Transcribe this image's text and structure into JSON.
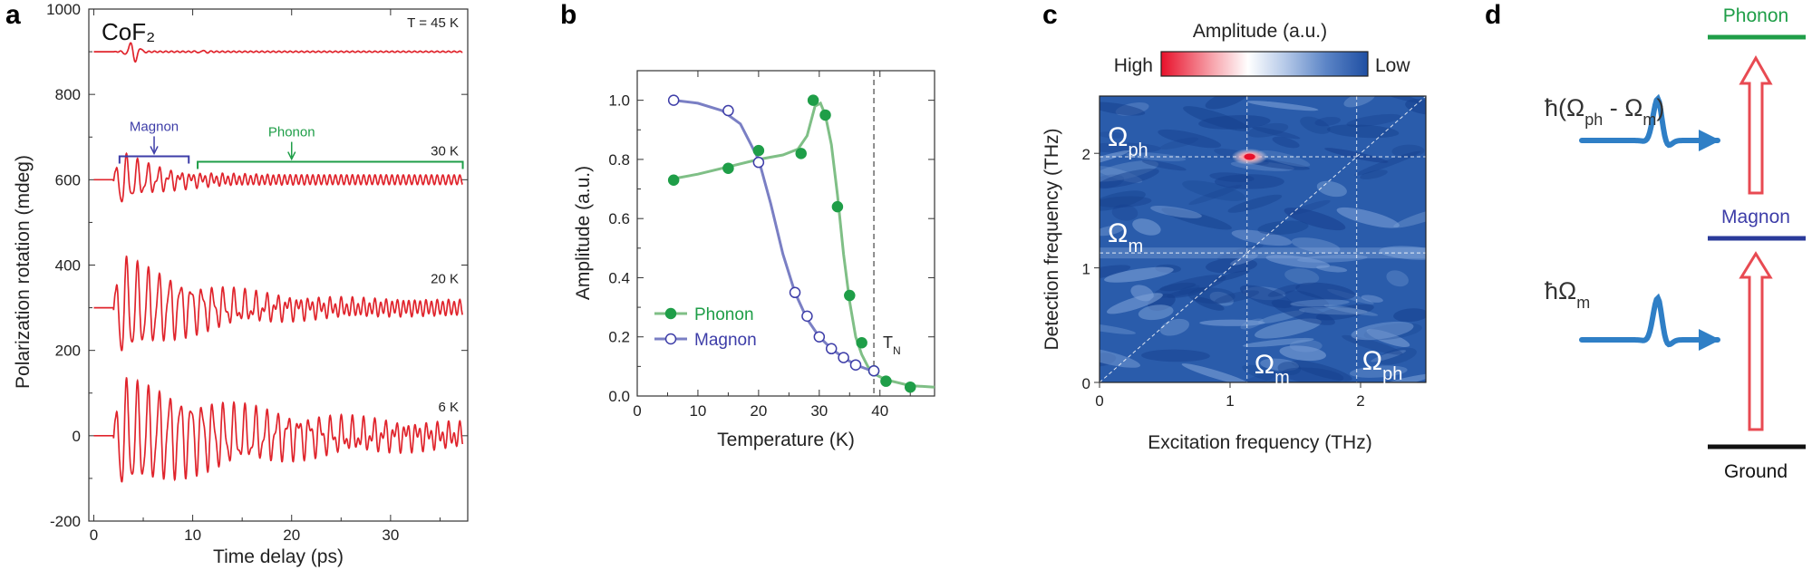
{
  "colors": {
    "red": "#e0242c",
    "green": "#1f9e48",
    "green_line": "#7fbf86",
    "blue": "#3d3da8",
    "blue_line": "#7a7fc4",
    "arrow_blue": "#2f7fc6",
    "map_blue": "#2a5cab",
    "black": "#111111"
  },
  "panel_labels": [
    "a",
    "b",
    "c",
    "d"
  ],
  "chart_data": [
    {
      "type": "line",
      "panel": "a",
      "material": "CoF₂",
      "xlabel": "Time delay (ps)",
      "ylabel": "Polarization rotation (mdeg)",
      "xlim": [
        -0.5,
        37.8
      ],
      "ylim": [
        -200,
        1000
      ],
      "xticks": [
        0,
        10,
        20,
        30
      ],
      "yticks": [
        -200,
        0,
        200,
        400,
        600,
        800,
        1000
      ],
      "series": [
        {
          "name": "T = 45 K",
          "offset": 900,
          "phonon_amp": 1.5,
          "magnon_amp": 0,
          "glitch": 25
        },
        {
          "name": "30 K",
          "offset": 600,
          "phonon_amp": 12,
          "magnon_amp": 70,
          "magnon_decay": 4
        },
        {
          "name": "20 K",
          "offset": 300,
          "phonon_amp": 18,
          "magnon_amp": 120,
          "magnon_decay": 9
        },
        {
          "name": "6 K",
          "offset": 0,
          "phonon_amp": 22,
          "magnon_amp": 125,
          "magnon_decay": 16
        }
      ],
      "annotations": [
        {
          "text": "Magnon",
          "x_range": [
            2.6,
            9.6
          ],
          "y": 655
        },
        {
          "text": "Phonon",
          "x_range": [
            10.5,
            37.3
          ],
          "y": 642
        }
      ]
    },
    {
      "type": "scatter",
      "panel": "b",
      "xlabel": "Temperature (K)",
      "ylabel": "Amplitude (a.u.)",
      "xlim": [
        0,
        49
      ],
      "ylim": [
        0,
        1.1
      ],
      "xticks": [
        0,
        10,
        20,
        30,
        40
      ],
      "yticks": [
        0.0,
        0.2,
        0.4,
        0.6,
        0.8,
        1.0
      ],
      "tn_label": "T",
      "tn_sub": "N",
      "tn": 39,
      "series": [
        {
          "name": "Phonon",
          "points": [
            [
              6,
              0.73
            ],
            [
              15,
              0.77
            ],
            [
              20,
              0.83
            ],
            [
              27,
              0.82
            ],
            [
              29,
              1.0
            ],
            [
              31,
              0.95
            ],
            [
              33,
              0.64
            ],
            [
              35,
              0.34
            ],
            [
              37,
              0.18
            ],
            [
              39,
              0.085
            ],
            [
              41,
              0.05
            ],
            [
              45,
              0.03
            ]
          ],
          "curve": [
            [
              6,
              0.735
            ],
            [
              10,
              0.75
            ],
            [
              15,
              0.775
            ],
            [
              20,
              0.8
            ],
            [
              24,
              0.815
            ],
            [
              26.5,
              0.835
            ],
            [
              28,
              0.88
            ],
            [
              29.3,
              0.98
            ],
            [
              30.2,
              0.99
            ],
            [
              31,
              0.95
            ],
            [
              32,
              0.85
            ],
            [
              33,
              0.68
            ],
            [
              34,
              0.48
            ],
            [
              35,
              0.32
            ],
            [
              36,
              0.2
            ],
            [
              37,
              0.14
            ],
            [
              38,
              0.1
            ],
            [
              39,
              0.075
            ],
            [
              41,
              0.055
            ],
            [
              43,
              0.045
            ],
            [
              45,
              0.035
            ],
            [
              49,
              0.03
            ]
          ]
        },
        {
          "name": "Magnon",
          "points": [
            [
              6,
              1.0
            ],
            [
              15,
              0.965
            ],
            [
              20,
              0.79
            ],
            [
              26,
              0.35
            ],
            [
              28,
              0.27
            ],
            [
              30,
              0.2
            ],
            [
              32,
              0.16
            ],
            [
              34,
              0.13
            ],
            [
              36,
              0.105
            ],
            [
              39,
              0.085
            ]
          ],
          "curve": [
            [
              6,
              1.0
            ],
            [
              10,
              0.99
            ],
            [
              14,
              0.965
            ],
            [
              17,
              0.92
            ],
            [
              20,
              0.8
            ],
            [
              22,
              0.65
            ],
            [
              24,
              0.48
            ],
            [
              26,
              0.35
            ],
            [
              28,
              0.26
            ],
            [
              30,
              0.2
            ],
            [
              32,
              0.16
            ],
            [
              34,
              0.13
            ],
            [
              36,
              0.105
            ],
            [
              38,
              0.09
            ],
            [
              39,
              0.085
            ]
          ]
        }
      ]
    },
    {
      "type": "heatmap",
      "panel": "c",
      "title": "Amplitude (a.u.)",
      "colorbar": {
        "high": "High",
        "low": "Low"
      },
      "xlabel": "Excitation frequency (THz)",
      "ylabel": "Detection frequency (THz)",
      "xlim": [
        0,
        2.5
      ],
      "ylim": [
        0,
        2.5
      ],
      "xticks": [
        0,
        1,
        2
      ],
      "yticks": [
        0,
        1,
        2
      ],
      "omega_m": 1.13,
      "omega_ph": 1.97,
      "peak": [
        1.15,
        1.97
      ],
      "labels": {
        "omega": "Ω",
        "m_sub": "m",
        "ph_sub": "ph"
      }
    },
    {
      "type": "diagram",
      "panel": "d",
      "levels": [
        {
          "name": "Phonon"
        },
        {
          "name": "Magnon"
        },
        {
          "name": "Ground"
        }
      ],
      "transition_upper": {
        "prefix": "ħ(Ω",
        "sub1": "ph",
        "middle": " - Ω",
        "sub2": "m",
        "suffix": ")"
      },
      "transition_lower": {
        "prefix": "ħΩ",
        "sub": "m"
      }
    }
  ]
}
